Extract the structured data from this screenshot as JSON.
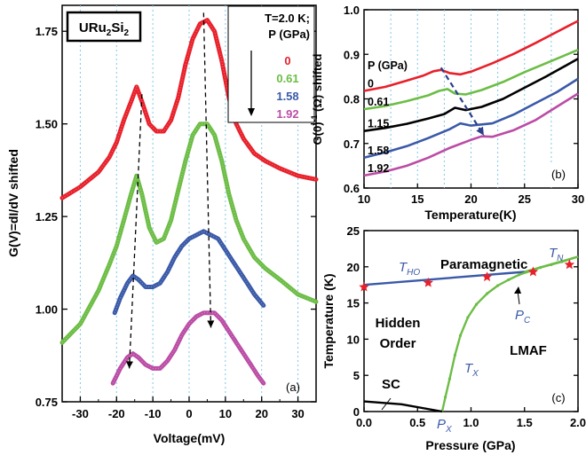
{
  "chart_data": [
    {
      "panel": "a",
      "type": "line",
      "panel_label": "(a)",
      "sample_label": "URu2Si2",
      "xlabel": "Voltage(mV)",
      "ylabel": "G(V)=dI/dV shifted",
      "xlim": [
        -35,
        35
      ],
      "ylim": [
        0.75,
        1.82
      ],
      "xticks": [
        -30,
        -20,
        -10,
        0,
        10,
        20,
        30
      ],
      "yticks": [
        0.75,
        1.0,
        1.25,
        1.5,
        1.75
      ],
      "ytick_labels": [
        "0.75",
        "1.00",
        "1.25",
        "1.50",
        "1.75"
      ],
      "grid": "vertical dotted",
      "legend": {
        "placement": "top-right",
        "header": [
          "T=2.0 K;",
          "P (GPa)"
        ],
        "arrow": "down"
      },
      "series": [
        {
          "name": "0",
          "color": "#e8202a",
          "x": [
            -35,
            -30,
            -25,
            -22,
            -20,
            -18,
            -16,
            -14.5,
            -13,
            -11,
            -9,
            -7,
            -5,
            -3,
            -1,
            1,
            3,
            5,
            7,
            9,
            11,
            13,
            15,
            18,
            21,
            25,
            30,
            35
          ],
          "y": [
            1.3,
            1.33,
            1.37,
            1.41,
            1.45,
            1.51,
            1.56,
            1.6,
            1.56,
            1.5,
            1.48,
            1.48,
            1.51,
            1.57,
            1.66,
            1.73,
            1.77,
            1.78,
            1.75,
            1.67,
            1.57,
            1.5,
            1.46,
            1.42,
            1.4,
            1.38,
            1.36,
            1.35
          ]
        },
        {
          "name": "0.61",
          "color": "#6cbd45",
          "x": [
            -35,
            -30,
            -25,
            -22,
            -20,
            -18,
            -16,
            -14.5,
            -13,
            -11,
            -9,
            -7,
            -5,
            -3,
            -1,
            1,
            3,
            5,
            7,
            9,
            11,
            13,
            15,
            18,
            21,
            25,
            30,
            35
          ],
          "y": [
            0.91,
            0.96,
            1.05,
            1.12,
            1.17,
            1.24,
            1.31,
            1.36,
            1.31,
            1.22,
            1.18,
            1.19,
            1.24,
            1.32,
            1.4,
            1.47,
            1.5,
            1.5,
            1.47,
            1.4,
            1.31,
            1.24,
            1.19,
            1.14,
            1.11,
            1.08,
            1.04,
            1.02
          ]
        },
        {
          "name": "1.58",
          "color": "#3a59a8",
          "x": [
            -20.5,
            -19,
            -17,
            -15.5,
            -14,
            -12,
            -10,
            -8,
            -6,
            -4,
            -2,
            0,
            2,
            4,
            6,
            8,
            10,
            12,
            14,
            16,
            18,
            20.5
          ],
          "y": [
            0.99,
            1.03,
            1.07,
            1.09,
            1.08,
            1.06,
            1.06,
            1.07,
            1.1,
            1.14,
            1.17,
            1.19,
            1.2,
            1.21,
            1.2,
            1.19,
            1.16,
            1.13,
            1.1,
            1.07,
            1.04,
            1.01
          ]
        },
        {
          "name": "1.92",
          "color": "#bb4ca5",
          "x": [
            -21,
            -19,
            -17,
            -15.5,
            -14,
            -12,
            -10,
            -8,
            -6,
            -4,
            -2,
            0,
            2,
            4,
            5.5,
            7,
            9,
            11,
            13,
            15,
            17,
            19,
            20.5
          ],
          "y": [
            0.8,
            0.84,
            0.87,
            0.88,
            0.87,
            0.85,
            0.84,
            0.84,
            0.86,
            0.89,
            0.93,
            0.96,
            0.98,
            0.99,
            0.99,
            0.99,
            0.97,
            0.94,
            0.91,
            0.88,
            0.85,
            0.82,
            0.8
          ]
        }
      ],
      "arrows": [
        {
          "x": [
            -13,
            -16.5
          ],
          "y": [
            1.58,
            0.84
          ]
        },
        {
          "x": [
            4,
            6
          ],
          "y": [
            1.8,
            0.95
          ]
        }
      ]
    },
    {
      "panel": "b",
      "type": "line",
      "panel_label": "(b)",
      "xlabel": "Temperature(K)",
      "ylabel": "G(0)-1 (Ω) shifted",
      "xlim": [
        10,
        30
      ],
      "ylim": [
        0.6,
        1.0
      ],
      "xticks": [
        10,
        15,
        20,
        25,
        30
      ],
      "yticks": [
        0.6,
        0.7,
        0.8,
        0.9,
        1.0
      ],
      "ytick_labels": [
        "0.6",
        "0.7",
        "0.8",
        "0.9",
        "1.0"
      ],
      "grid": "vertical dotted",
      "legend_title": "P (GPa)",
      "series": [
        {
          "name": "0",
          "color": "#e8202a",
          "x": [
            10,
            12,
            14,
            15.5,
            16.5,
            17.2,
            18,
            19,
            20,
            22,
            24,
            26,
            28,
            30
          ],
          "y": [
            0.818,
            0.827,
            0.841,
            0.852,
            0.862,
            0.865,
            0.858,
            0.855,
            0.861,
            0.88,
            0.901,
            0.925,
            0.95,
            0.975
          ]
        },
        {
          "name": "0.61",
          "color": "#6cbd45",
          "x": [
            10,
            12,
            14,
            16,
            17,
            17.8,
            18.5,
            19.5,
            21,
            23,
            25,
            27,
            30
          ],
          "y": [
            0.777,
            0.784,
            0.795,
            0.808,
            0.818,
            0.822,
            0.812,
            0.81,
            0.82,
            0.838,
            0.86,
            0.88,
            0.91
          ]
        },
        {
          "name": "1.15",
          "color": "#000000",
          "x": [
            10,
            12,
            14,
            16,
            17.5,
            18.5,
            19.5,
            21,
            23,
            25,
            27,
            30
          ],
          "y": [
            0.728,
            0.735,
            0.744,
            0.756,
            0.766,
            0.78,
            0.775,
            0.782,
            0.8,
            0.825,
            0.85,
            0.89
          ]
        },
        {
          "name": "1.58",
          "color": "#3a59a8",
          "x": [
            10,
            12,
            14,
            16,
            18,
            19,
            20,
            22,
            24,
            26,
            28,
            30
          ],
          "y": [
            0.668,
            0.68,
            0.694,
            0.712,
            0.732,
            0.745,
            0.74,
            0.745,
            0.765,
            0.79,
            0.815,
            0.845
          ]
        },
        {
          "name": "1.92",
          "color": "#bb4ca5",
          "x": [
            10,
            12,
            14,
            16,
            18,
            20,
            21,
            22,
            24,
            26,
            28,
            30
          ],
          "y": [
            0.628,
            0.637,
            0.65,
            0.668,
            0.69,
            0.708,
            0.716,
            0.715,
            0.73,
            0.752,
            0.782,
            0.812
          ]
        }
      ],
      "arrow": {
        "x": [
          17.2,
          21.2
        ],
        "y": [
          0.87,
          0.718
        ]
      }
    },
    {
      "panel": "c",
      "type": "line",
      "panel_label": "(c)",
      "xlabel": "Pressure (GPa)",
      "ylabel": "Temperature (K)",
      "xlim": [
        0,
        2
      ],
      "ylim": [
        0,
        25
      ],
      "xticks": [
        0.0,
        0.5,
        1.0,
        1.5,
        2.0
      ],
      "xtick_labels": [
        "0.0",
        "0.5",
        "1.0",
        "1.5",
        "2.0"
      ],
      "yticks": [
        0,
        5,
        10,
        15,
        20,
        25
      ],
      "lines": [
        {
          "name": "T_HO",
          "color": "#3a59a8",
          "x": [
            0.0,
            1.5
          ],
          "y": [
            17.5,
            19.3
          ]
        },
        {
          "name": "T_N",
          "color": "#6cbd45",
          "x": [
            1.5,
            2.0
          ],
          "y": [
            19.3,
            21.4
          ]
        },
        {
          "name": "T_X",
          "color": "#6cbd45",
          "x": [
            0.73,
            0.76,
            0.8,
            0.85,
            0.9,
            0.97,
            1.05,
            1.15,
            1.25,
            1.35,
            1.45,
            1.55,
            1.65,
            1.75,
            1.85,
            2.0
          ],
          "y": [
            0.0,
            2.0,
            4.5,
            7.8,
            10.5,
            13.0,
            14.8,
            16.3,
            17.4,
            18.2,
            18.9,
            19.4,
            19.9,
            20.3,
            20.7,
            21.4
          ]
        },
        {
          "name": "SC",
          "color": "#000000",
          "x": [
            0.0,
            0.35,
            0.73
          ],
          "y": [
            1.4,
            1.0,
            0.0
          ]
        }
      ],
      "stars": {
        "color": "#e8202a",
        "x": [
          0.0,
          0.6,
          1.15,
          1.58,
          1.92
        ],
        "y": [
          17.2,
          17.8,
          18.6,
          19.3,
          20.3
        ]
      },
      "annotations": {
        "paramagnetic": "Paramagnetic",
        "tn": "T_N",
        "tho": "T_HO",
        "hidden1": "Hidden",
        "hidden2": "Order",
        "pc": "P_C",
        "lmaf": "LMAF",
        "tx": "T_X",
        "sc": "SC",
        "px": "P_X"
      }
    }
  ]
}
